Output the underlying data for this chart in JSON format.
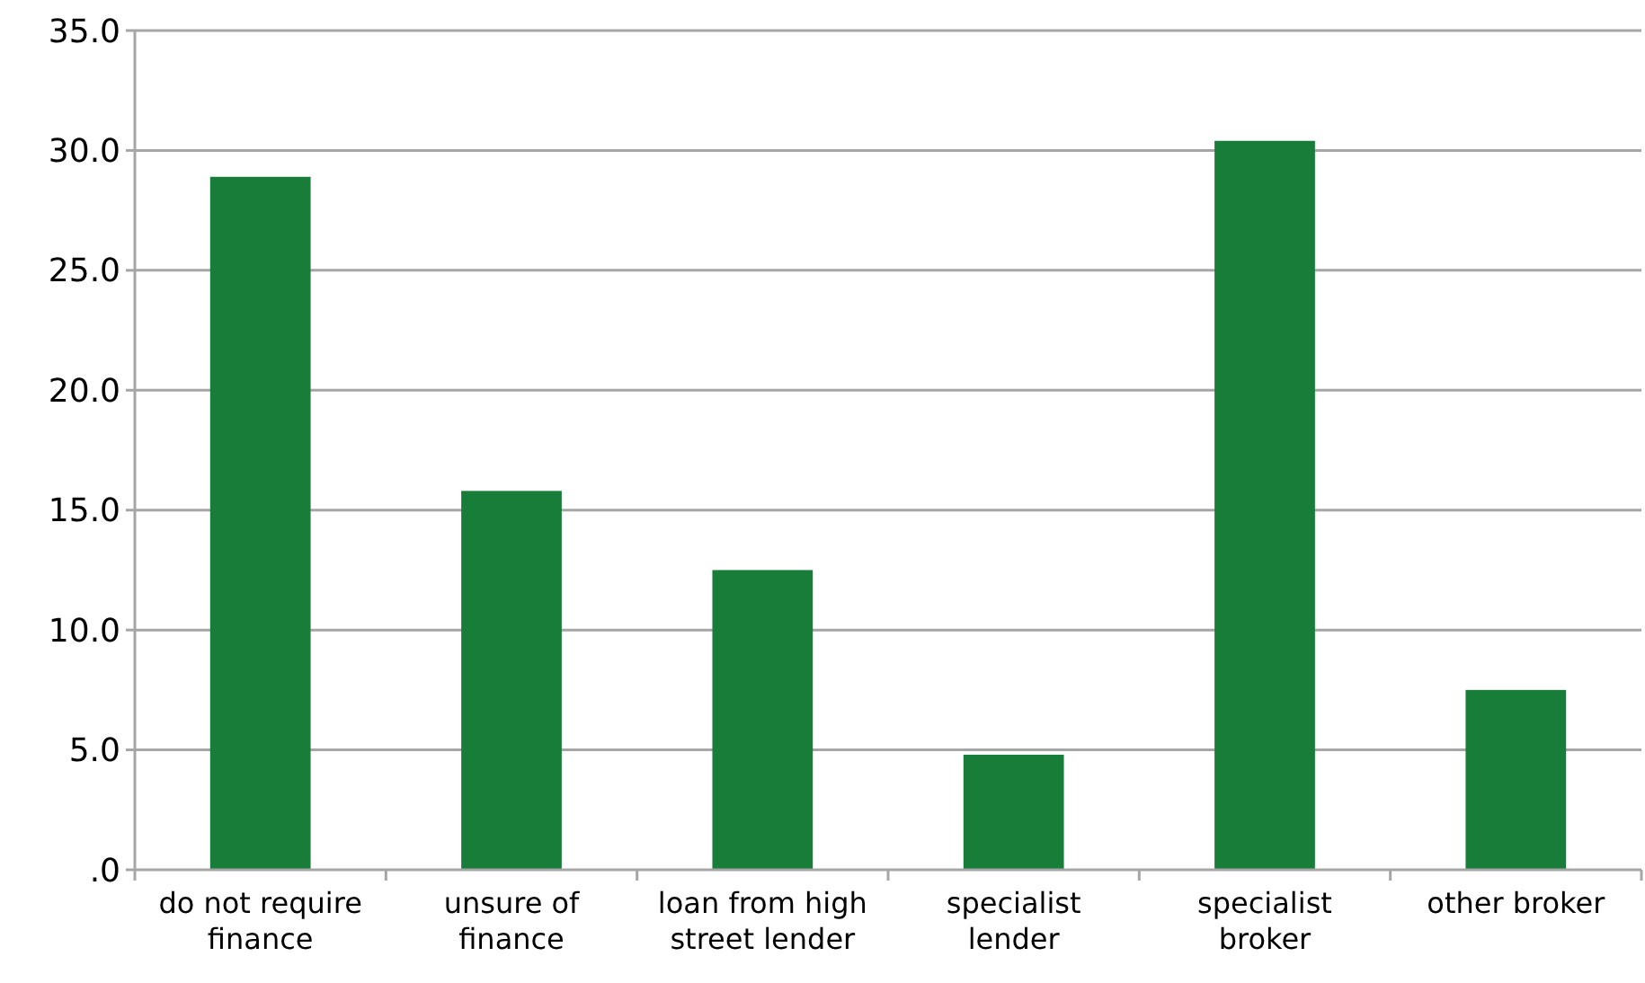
{
  "chart_data": {
    "type": "bar",
    "categories": [
      "do not require finance",
      "unsure of finance",
      "loan from high street lender",
      "specialist lender",
      "specialist broker",
      "other broker"
    ],
    "values": [
      28.9,
      15.8,
      12.5,
      4.8,
      30.4,
      7.5
    ],
    "color": "#177d39",
    "ylim": [
      0,
      35
    ],
    "yticks": [
      {
        "value": 0,
        "label": ".0"
      },
      {
        "value": 5,
        "label": "5.0"
      },
      {
        "value": 10,
        "label": "10.0"
      },
      {
        "value": 15,
        "label": "15.0"
      },
      {
        "value": 20,
        "label": "20.0"
      },
      {
        "value": 25,
        "label": "25.0"
      },
      {
        "value": 30,
        "label": "30.0"
      },
      {
        "value": 35,
        "label": "35.0"
      }
    ],
    "grid": "y"
  }
}
